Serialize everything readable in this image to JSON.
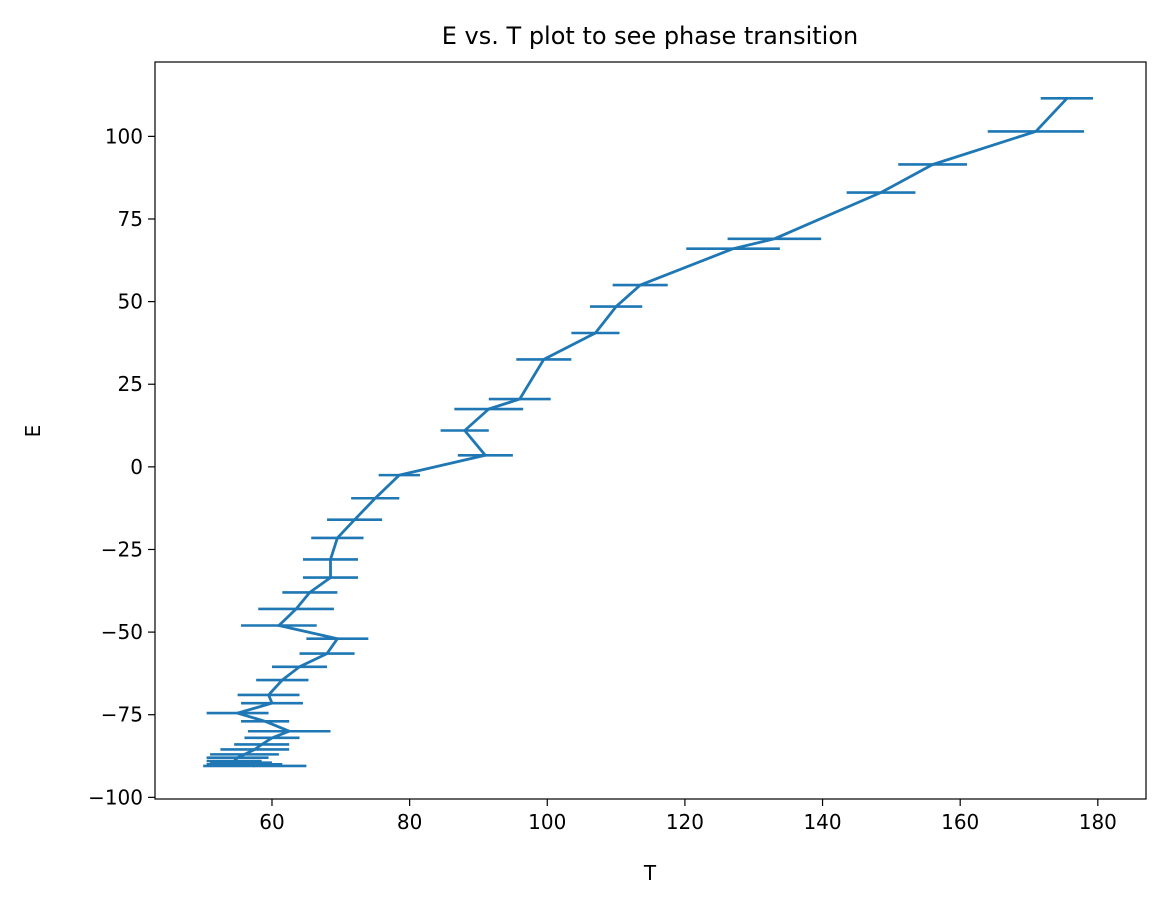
{
  "chart_data": {
    "type": "line",
    "title": "E vs. T plot to see phase transition",
    "xlabel": "T",
    "ylabel": "E",
    "xlim": [
      43,
      187
    ],
    "ylim": [
      -100.5,
      122.5
    ],
    "xticks": [
      60,
      80,
      100,
      120,
      140,
      160,
      180
    ],
    "yticks": [
      -100,
      -75,
      -50,
      -25,
      0,
      25,
      50,
      75,
      100
    ],
    "xtick_labels": [
      "60",
      "80",
      "100",
      "120",
      "140",
      "160",
      "180"
    ],
    "ytick_labels": [
      "−100",
      "−75",
      "−50",
      "−25",
      "0",
      "25",
      "50",
      "75",
      "100"
    ],
    "grid": false,
    "legend": "none",
    "color": "#1f77b4",
    "series": [
      {
        "points": [
          {
            "T": 175.5,
            "E": 111.5,
            "err": 3.8
          },
          {
            "T": 171.0,
            "E": 101.5,
            "err": 7.0
          },
          {
            "T": 156.0,
            "E": 91.5,
            "err": 5.0
          },
          {
            "T": 148.5,
            "E": 83.0,
            "err": 5.0
          },
          {
            "T": 133.0,
            "E": 69.0,
            "err": 6.8
          },
          {
            "T": 127.0,
            "E": 66.0,
            "err": 6.8
          },
          {
            "T": 113.5,
            "E": 55.0,
            "err": 4.0
          },
          {
            "T": 110.0,
            "E": 48.5,
            "err": 3.8
          },
          {
            "T": 107.0,
            "E": 40.5,
            "err": 3.5
          },
          {
            "T": 99.5,
            "E": 32.5,
            "err": 4.0
          },
          {
            "T": 96.0,
            "E": 20.5,
            "err": 4.5
          },
          {
            "T": 91.5,
            "E": 17.5,
            "err": 5.0
          },
          {
            "T": 88.0,
            "E": 11.0,
            "err": 3.5
          },
          {
            "T": 91.0,
            "E": 3.5,
            "err": 4.0
          },
          {
            "T": 78.5,
            "E": -2.5,
            "err": 3.0
          },
          {
            "T": 75.0,
            "E": -9.5,
            "err": 3.5
          },
          {
            "T": 72.0,
            "E": -16.0,
            "err": 4.0
          },
          {
            "T": 69.5,
            "E": -21.5,
            "err": 3.8
          },
          {
            "T": 68.5,
            "E": -28.0,
            "err": 4.0
          },
          {
            "T": 68.5,
            "E": -33.5,
            "err": 4.0
          },
          {
            "T": 65.5,
            "E": -38.0,
            "err": 4.0
          },
          {
            "T": 63.5,
            "E": -43.0,
            "err": 5.5
          },
          {
            "T": 61.0,
            "E": -48.0,
            "err": 5.5
          },
          {
            "T": 69.5,
            "E": -52.0,
            "err": 4.5
          },
          {
            "T": 68.0,
            "E": -56.5,
            "err": 4.0
          },
          {
            "T": 64.0,
            "E": -60.5,
            "err": 4.0
          },
          {
            "T": 61.5,
            "E": -64.5,
            "err": 3.8
          },
          {
            "T": 59.5,
            "E": -69.0,
            "err": 4.5
          },
          {
            "T": 60.0,
            "E": -71.5,
            "err": 4.5
          },
          {
            "T": 55.0,
            "E": -74.5,
            "err": 4.5
          },
          {
            "T": 59.0,
            "E": -77.0,
            "err": 3.5
          },
          {
            "T": 62.5,
            "E": -80.0,
            "err": 6.0
          },
          {
            "T": 60.0,
            "E": -82.0,
            "err": 4.0
          },
          {
            "T": 58.5,
            "E": -84.0,
            "err": 4.0
          },
          {
            "T": 57.5,
            "E": -85.5,
            "err": 5.0
          },
          {
            "T": 56.0,
            "E": -87.0,
            "err": 5.0
          },
          {
            "T": 55.0,
            "E": -88.0,
            "err": 4.5
          },
          {
            "T": 54.5,
            "E": -89.0,
            "err": 4.0
          },
          {
            "T": 55.5,
            "E": -89.5,
            "err": 4.5
          },
          {
            "T": 56.0,
            "E": -90.0,
            "err": 5.5
          },
          {
            "T": 57.5,
            "E": -90.5,
            "err": 7.5
          }
        ]
      }
    ]
  }
}
